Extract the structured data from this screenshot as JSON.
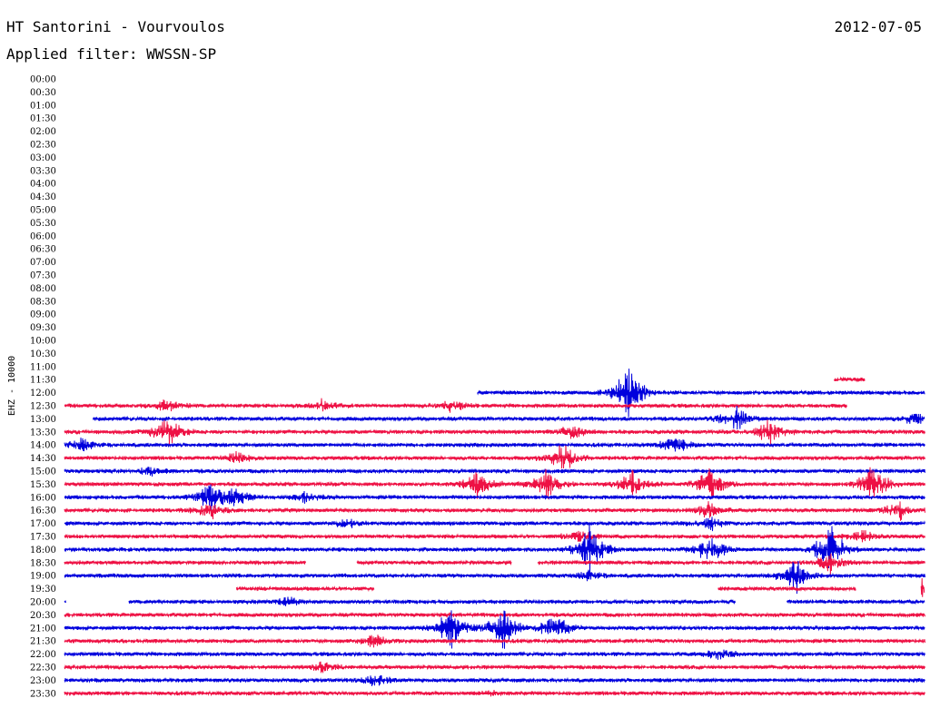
{
  "header": {
    "station": "HT Santorini - Vourvoulos",
    "date": "2012-07-05",
    "filter": "Applied filter: WWSSN-SP"
  },
  "chart_data": {
    "type": "line",
    "title": "HT Santorini - Vourvoulos",
    "ylabel": "EHZ - 10000",
    "rows": [
      "00:00",
      "00:30",
      "01:00",
      "01:30",
      "02:00",
      "02:30",
      "03:00",
      "03:30",
      "04:00",
      "04:30",
      "05:00",
      "05:30",
      "06:00",
      "06:30",
      "07:00",
      "07:30",
      "08:00",
      "08:30",
      "09:00",
      "09:30",
      "10:00",
      "10:30",
      "11:00",
      "11:30",
      "12:00",
      "12:30",
      "13:00",
      "13:30",
      "14:00",
      "14:30",
      "15:00",
      "15:30",
      "16:00",
      "16:30",
      "17:00",
      "17:30",
      "18:00",
      "18:30",
      "19:00",
      "19:30",
      "20:00",
      "20:30",
      "21:00",
      "21:30",
      "22:00",
      "22:30",
      "23:00",
      "23:30"
    ],
    "colors": {
      "blue": "#0000dd",
      "red": "#ee1144"
    },
    "trace_start_row": "11:30",
    "traces": [
      {
        "row": "11:30",
        "segments": [
          [
            0.895,
            0.93
          ]
        ],
        "events": []
      },
      {
        "row": "12:00",
        "segments": [
          [
            0.48,
            1.0
          ]
        ],
        "events": [
          [
            0.655,
            25
          ]
        ]
      },
      {
        "row": "12:30",
        "segments": [
          [
            0.0,
            0.91
          ]
        ],
        "events": [
          [
            0.12,
            7
          ],
          [
            0.3,
            5
          ],
          [
            0.45,
            5
          ]
        ]
      },
      {
        "row": "13:00",
        "segments": [
          [
            0.033,
            1.0
          ]
        ],
        "events": [
          [
            0.78,
            12
          ],
          [
            0.99,
            6
          ]
        ]
      },
      {
        "row": "13:30",
        "segments": [
          [
            0.0,
            1.0
          ]
        ],
        "events": [
          [
            0.12,
            15
          ],
          [
            0.82,
            12
          ],
          [
            0.59,
            6
          ]
        ]
      },
      {
        "row": "14:00",
        "segments": [
          [
            0.0,
            1.0
          ]
        ],
        "events": [
          [
            0.02,
            7
          ],
          [
            0.71,
            10
          ]
        ]
      },
      {
        "row": "14:30",
        "segments": [
          [
            0.0,
            1.0
          ]
        ],
        "events": [
          [
            0.58,
            14
          ],
          [
            0.2,
            5
          ]
        ]
      },
      {
        "row": "15:00",
        "segments": [
          [
            0.0,
            1.0
          ]
        ],
        "events": [
          [
            0.1,
            4
          ]
        ]
      },
      {
        "row": "15:30",
        "segments": [
          [
            0.0,
            1.0
          ]
        ],
        "events": [
          [
            0.48,
            14
          ],
          [
            0.56,
            14
          ],
          [
            0.66,
            12
          ],
          [
            0.75,
            17
          ],
          [
            0.94,
            17
          ]
        ]
      },
      {
        "row": "16:00",
        "segments": [
          [
            0.0,
            1.0
          ]
        ],
        "events": [
          [
            0.17,
            15
          ],
          [
            0.2,
            10
          ],
          [
            0.28,
            5
          ]
        ]
      },
      {
        "row": "16:30",
        "segments": [
          [
            0.0,
            1.0
          ]
        ],
        "events": [
          [
            0.17,
            8
          ],
          [
            0.75,
            8
          ],
          [
            0.97,
            8
          ]
        ]
      },
      {
        "row": "17:00",
        "segments": [
          [
            0.0,
            1.0
          ]
        ],
        "events": [
          [
            0.33,
            4
          ],
          [
            0.75,
            6
          ]
        ]
      },
      {
        "row": "17:30",
        "segments": [
          [
            0.0,
            1.0
          ]
        ],
        "events": [
          [
            0.6,
            6
          ],
          [
            0.93,
            6
          ]
        ]
      },
      {
        "row": "18:00",
        "segments": [
          [
            0.0,
            1.0
          ]
        ],
        "events": [
          [
            0.61,
            22
          ],
          [
            0.75,
            14
          ],
          [
            0.89,
            22
          ]
        ]
      },
      {
        "row": "18:30",
        "segments": [
          [
            0.0,
            0.28
          ],
          [
            0.34,
            0.52
          ],
          [
            0.55,
            1.0
          ]
        ],
        "events": [
          [
            0.89,
            10
          ]
        ]
      },
      {
        "row": "19:00",
        "segments": [
          [
            0.0,
            1.0
          ]
        ],
        "events": [
          [
            0.85,
            16
          ],
          [
            0.61,
            5
          ]
        ]
      },
      {
        "row": "19:30",
        "segments": [
          [
            0.2,
            0.36
          ],
          [
            0.76,
            0.92
          ],
          [
            0.996,
            1.0
          ]
        ],
        "events": [
          [
            0.996,
            8
          ]
        ]
      },
      {
        "row": "20:00",
        "segments": [
          [
            0.0,
            0.002
          ],
          [
            0.075,
            0.78
          ],
          [
            0.84,
            1.0
          ]
        ],
        "events": [
          [
            0.26,
            4
          ]
        ]
      },
      {
        "row": "20:30",
        "segments": [
          [
            0.0,
            1.0
          ]
        ],
        "events": [
          [
            0.0,
            0
          ]
        ]
      },
      {
        "row": "21:00",
        "segments": [
          [
            0.0,
            1.0
          ]
        ],
        "events": [
          [
            0.45,
            18
          ],
          [
            0.51,
            18
          ],
          [
            0.57,
            14
          ]
        ]
      },
      {
        "row": "21:30",
        "segments": [
          [
            0.0,
            1.0
          ]
        ],
        "events": [
          [
            0.36,
            6
          ]
        ]
      },
      {
        "row": "22:00",
        "segments": [
          [
            0.0,
            1.0
          ]
        ],
        "events": [
          [
            0.76,
            6
          ]
        ]
      },
      {
        "row": "22:30",
        "segments": [
          [
            0.0,
            1.0
          ]
        ],
        "events": [
          [
            0.3,
            5
          ]
        ]
      },
      {
        "row": "23:00",
        "segments": [
          [
            0.0,
            1.0
          ]
        ],
        "events": [
          [
            0.36,
            6
          ]
        ]
      },
      {
        "row": "23:30",
        "segments": [
          [
            0.0,
            1.0
          ]
        ],
        "events": [
          [
            0.5,
            2
          ]
        ]
      }
    ]
  }
}
